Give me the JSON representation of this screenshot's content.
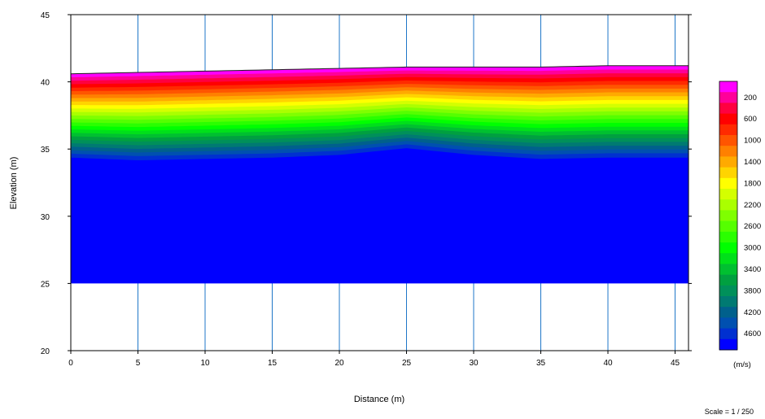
{
  "chart_data": {
    "type": "heatmap",
    "title": "",
    "xlabel": "Distance (m)",
    "ylabel": "Elevation (m)",
    "xlim": [
      0,
      46
    ],
    "ylim": [
      20,
      45
    ],
    "x_ticks": [
      0,
      5,
      10,
      15,
      20,
      25,
      30,
      35,
      40,
      45
    ],
    "y_ticks": [
      20,
      25,
      30,
      35,
      40,
      45
    ],
    "grid": "vertical",
    "bottom_elevation": 25,
    "surface": {
      "x": [
        0,
        5,
        10,
        15,
        20,
        25,
        30,
        35,
        40,
        46
      ],
      "elevation": [
        40.6,
        40.7,
        40.8,
        40.9,
        41.0,
        41.1,
        41.1,
        41.1,
        41.2,
        41.2
      ]
    },
    "base_layer": {
      "x": [
        0,
        5,
        10,
        15,
        20,
        25,
        30,
        35,
        40,
        46
      ],
      "elevation": [
        34.4,
        34.2,
        34.3,
        34.4,
        34.6,
        35.1,
        34.6,
        34.3,
        34.4,
        34.4
      ]
    },
    "colorbar": {
      "unit": "(m/s)",
      "range": [
        0,
        5000
      ],
      "labels": [
        "200",
        "600",
        "1000",
        "1400",
        "1800",
        "2200",
        "2600",
        "3000",
        "3400",
        "3800",
        "4200",
        "4600"
      ],
      "levels": [
        0,
        200,
        400,
        600,
        800,
        1000,
        1200,
        1400,
        1600,
        1800,
        2000,
        2200,
        2400,
        2600,
        2800,
        3000,
        3200,
        3400,
        3600,
        3800,
        4000,
        4200,
        4400,
        4600,
        4800
      ],
      "colors": [
        "#ff00ff",
        "#ff0099",
        "#ff0040",
        "#ff0000",
        "#ff2a00",
        "#ff5500",
        "#ff8000",
        "#ffaa00",
        "#ffd400",
        "#ffff00",
        "#d4ff00",
        "#aaff00",
        "#7fff00",
        "#55ff00",
        "#2aff00",
        "#00ff00",
        "#00e01a",
        "#00c030",
        "#00a040",
        "#00905a",
        "#007a72",
        "#00608c",
        "#0050b0",
        "#0030d0",
        "#0000ff"
      ]
    },
    "scale_note": "Scale = 1 / 250"
  }
}
